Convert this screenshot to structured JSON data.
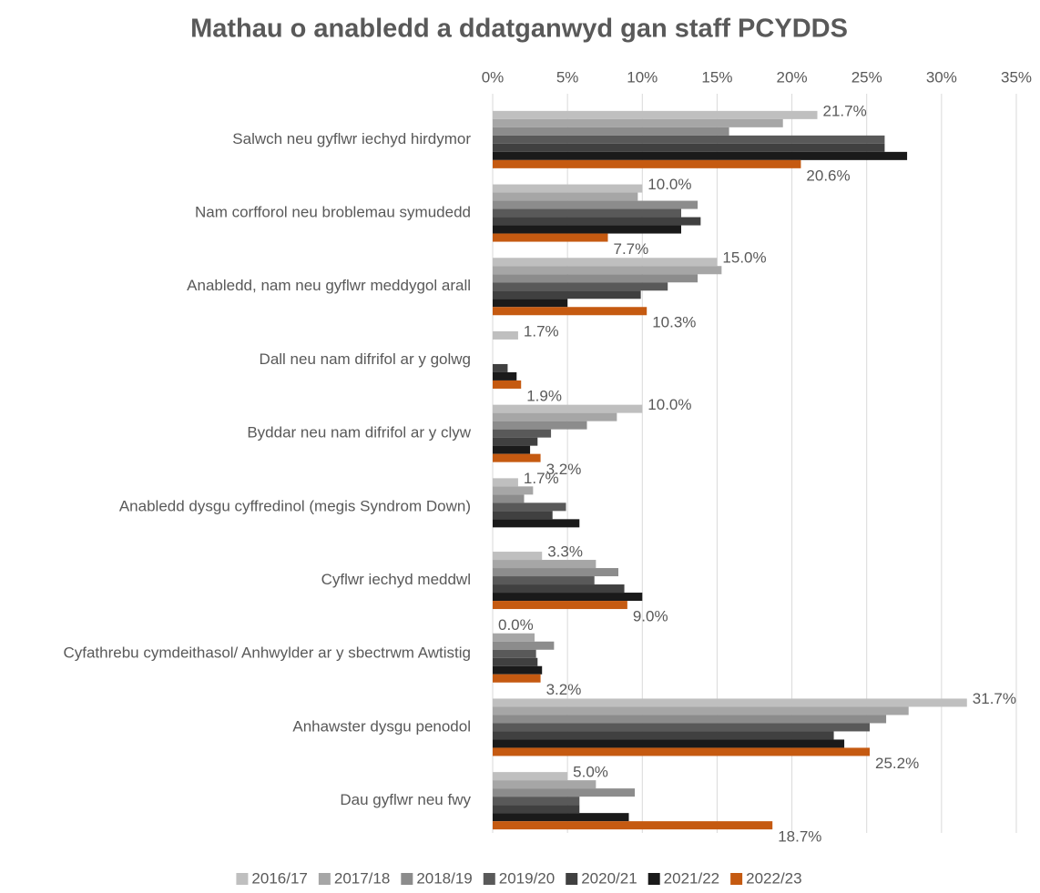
{
  "chart_data": {
    "type": "hbar",
    "title": "Mathau o anabledd a ddatganwyd gan staff PCYDDS",
    "categories": [
      "Salwch neu gyflwr iechyd hirdymor",
      "Nam corfforol neu broblemau symudedd",
      "Anabledd, nam neu gyflwr meddygol arall",
      "Dall neu nam difrifol ar y golwg",
      "Byddar neu nam difrifol ar y clyw",
      "Anabledd dysgu cyffredinol (megis Syndrom Down)",
      "Cyflwr iechyd meddwl",
      "Cyfathrebu cymdeithasol/ Anhwylder ar y sbectrwm Awtistig",
      "Anhawster dysgu penodol",
      "Dau gyflwr neu fwy"
    ],
    "series": [
      {
        "name": "2016/17",
        "color": "#bfbfbf",
        "values": [
          21.7,
          10.0,
          15.0,
          1.7,
          10.0,
          1.7,
          3.3,
          0.0,
          31.7,
          5.0
        ],
        "value_labels": [
          "21.7%",
          "10.0%",
          "15.0%",
          "1.7%",
          "10.0%",
          "1.7%",
          "3.3%",
          "0.0%",
          "31.7%",
          "5.0%"
        ]
      },
      {
        "name": "2017/18",
        "color": "#a6a6a6",
        "values": [
          19.4,
          9.7,
          15.3,
          0,
          8.3,
          2.7,
          6.9,
          2.8,
          27.8,
          6.9
        ]
      },
      {
        "name": "2018/19",
        "color": "#8c8c8c",
        "values": [
          15.8,
          13.7,
          13.7,
          0,
          6.3,
          2.1,
          8.4,
          4.1,
          26.3,
          9.5
        ]
      },
      {
        "name": "2019/20",
        "color": "#595959",
        "values": [
          26.2,
          12.6,
          11.7,
          0,
          3.9,
          4.9,
          6.8,
          2.9,
          25.2,
          5.8
        ]
      },
      {
        "name": "2020/21",
        "color": "#404040",
        "values": [
          26.2,
          13.9,
          9.9,
          1.0,
          3.0,
          4.0,
          8.8,
          3.0,
          22.8,
          5.8
        ]
      },
      {
        "name": "2021/22",
        "color": "#1a1a1a",
        "values": [
          27.7,
          12.6,
          5.0,
          1.6,
          2.5,
          5.8,
          10.0,
          3.3,
          23.5,
          9.1
        ]
      },
      {
        "name": "2022/23",
        "color": "#c55a11",
        "values": [
          20.6,
          7.7,
          10.3,
          1.9,
          3.2,
          null,
          9.0,
          3.2,
          25.2,
          18.7
        ],
        "value_labels": [
          "20.6%",
          "7.7%",
          "10.3%",
          "1.9%",
          "3.2%",
          null,
          "9.0%",
          "3.2%",
          "25.2%",
          "18.7%"
        ]
      }
    ],
    "xlim": [
      0,
      35
    ],
    "xticks": [
      {
        "value": 0,
        "label": "0%"
      },
      {
        "value": 5,
        "label": "5%"
      },
      {
        "value": 10,
        "label": "10%"
      },
      {
        "value": 15,
        "label": "15%"
      },
      {
        "value": 20,
        "label": "20%"
      },
      {
        "value": 25,
        "label": "25%"
      },
      {
        "value": 30,
        "label": "30%"
      },
      {
        "value": 35,
        "label": "35%"
      }
    ],
    "grid": true,
    "legend": "bottom"
  }
}
